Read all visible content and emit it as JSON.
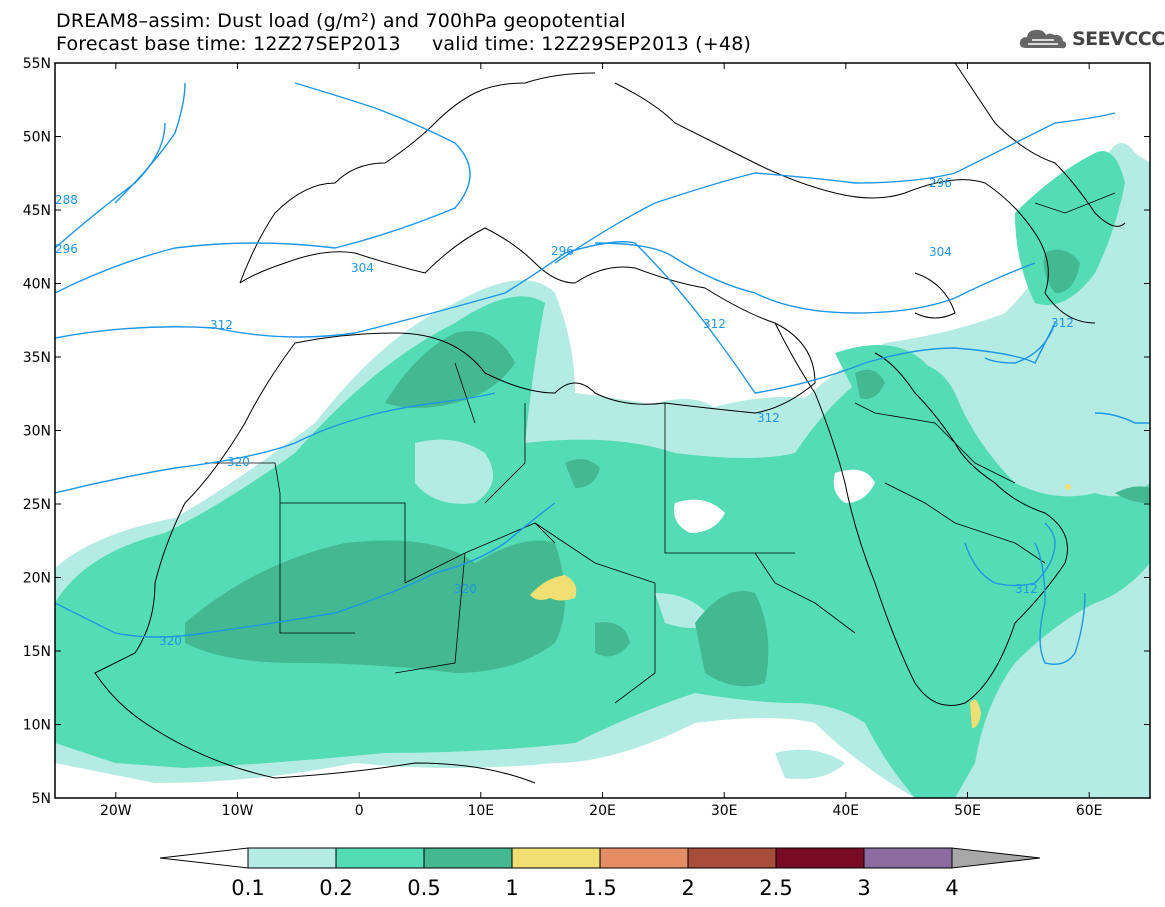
{
  "title": {
    "line1": "DREAM8–assim: Dust load (g/m²) and 700hPa geopotential",
    "line2": "Forecast base time: 12Z27SEP2013     valid time: 12Z29SEP2013 (+48)"
  },
  "logo": {
    "text": "SEEVCCC",
    "icon": "cloud-icon"
  },
  "map": {
    "lon_range": [
      -25,
      65
    ],
    "lat_range": [
      5,
      55
    ],
    "lat_ticks": [
      "55N",
      "50N",
      "45N",
      "40N",
      "35N",
      "30N",
      "25N",
      "20N",
      "15N",
      "10N",
      "5N"
    ],
    "lon_ticks": [
      "20W",
      "10W",
      "0",
      "10E",
      "20E",
      "30E",
      "40E",
      "50E",
      "60E"
    ],
    "contour_labels": [
      "296",
      "304",
      "312",
      "320",
      "312",
      "320",
      "320",
      "312",
      "312",
      "312",
      "304",
      "296",
      "288",
      "296"
    ],
    "contour_color": "#1e96e6"
  },
  "colorbar": {
    "labels": [
      "0.1",
      "0.2",
      "0.5",
      "1",
      "1.5",
      "2",
      "2.5",
      "3",
      "4"
    ],
    "colors": [
      "#ffffff",
      "#b4ece4",
      "#54dcb4",
      "#44b890",
      "#f0e074",
      "#e48c64",
      "#a84c3c",
      "#780c24",
      "#8c6ca0",
      "#a8a8a8"
    ]
  }
}
